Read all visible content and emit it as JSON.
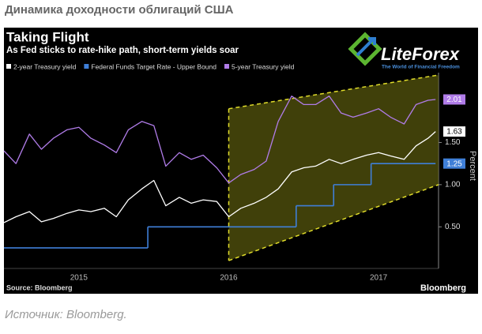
{
  "header": {
    "title": "Динамика доходности облигаций США"
  },
  "chart_data": {
    "type": "line",
    "title": "Taking Flight",
    "subtitle": "As Fed sticks to rate-hike path, short-term yields soar",
    "y_label": "Percent",
    "source": "Source: Bloomberg",
    "brand": "Bloomberg",
    "watermark": {
      "name": "LiteForex",
      "tagline": "The World of Financial Freedom"
    },
    "xlim": [
      2015,
      2017.9
    ],
    "xticks": [
      {
        "value": 2015.5,
        "label": "2015"
      },
      {
        "value": 2016.5,
        "label": "2016"
      },
      {
        "value": 2017.5,
        "label": "2017"
      }
    ],
    "ylim": [
      0.1,
      2.3
    ],
    "yticks": [
      {
        "value": 0.5,
        "label": "0.50"
      },
      {
        "value": 1,
        "label": "1.00"
      },
      {
        "value": 1.5,
        "label": "1.50"
      }
    ],
    "axis_side": "right",
    "grid": false,
    "series": [
      {
        "name": "2-year Treasury yield",
        "color": "#ffffff",
        "x": [
          2015.0,
          2015.08,
          2015.17,
          2015.25,
          2015.33,
          2015.42,
          2015.5,
          2015.58,
          2015.67,
          2015.75,
          2015.83,
          2015.92,
          2016.0,
          2016.08,
          2016.17,
          2016.25,
          2016.33,
          2016.42,
          2016.5,
          2016.58,
          2016.67,
          2016.75,
          2016.83,
          2016.92,
          2017.0,
          2017.08,
          2017.17,
          2017.25,
          2017.33,
          2017.42,
          2017.5,
          2017.58,
          2017.67,
          2017.75,
          2017.83,
          2017.88
        ],
        "values": [
          0.55,
          0.62,
          0.68,
          0.56,
          0.6,
          0.66,
          0.7,
          0.68,
          0.72,
          0.62,
          0.82,
          0.95,
          1.05,
          0.75,
          0.85,
          0.78,
          0.82,
          0.8,
          0.62,
          0.72,
          0.78,
          0.85,
          0.95,
          1.15,
          1.2,
          1.22,
          1.3,
          1.25,
          1.3,
          1.35,
          1.38,
          1.34,
          1.3,
          1.46,
          1.55,
          1.63
        ]
      },
      {
        "name": "Federal Funds Target Rate - Upper Bound",
        "color": "#3f7fd8",
        "step": true,
        "x": [
          2015.0,
          2015.96,
          2016.95,
          2017.2,
          2017.45,
          2017.88
        ],
        "values": [
          0.25,
          0.5,
          0.75,
          1,
          1.25,
          1.25
        ]
      },
      {
        "name": "5-year Treasury yield",
        "color": "#b07ce8",
        "x": [
          2015.0,
          2015.08,
          2015.17,
          2015.25,
          2015.33,
          2015.42,
          2015.5,
          2015.58,
          2015.67,
          2015.75,
          2015.83,
          2015.92,
          2016.0,
          2016.08,
          2016.17,
          2016.25,
          2016.33,
          2016.42,
          2016.5,
          2016.58,
          2016.67,
          2016.75,
          2016.83,
          2016.92,
          2017.0,
          2017.08,
          2017.17,
          2017.25,
          2017.33,
          2017.42,
          2017.5,
          2017.58,
          2017.67,
          2017.75,
          2017.83,
          2017.88
        ],
        "values": [
          1.4,
          1.25,
          1.6,
          1.42,
          1.55,
          1.65,
          1.68,
          1.55,
          1.47,
          1.38,
          1.65,
          1.75,
          1.7,
          1.22,
          1.38,
          1.3,
          1.35,
          1.2,
          1.02,
          1.12,
          1.18,
          1.28,
          1.75,
          2.05,
          1.95,
          1.95,
          2.05,
          1.85,
          1.8,
          1.85,
          1.9,
          1.8,
          1.72,
          1.95,
          2.0,
          2.01
        ]
      }
    ],
    "channel": {
      "color": "#e0dc2a",
      "fill": "#55550e",
      "x": [
        2016.5,
        2017.9
      ],
      "upper": [
        1.9,
        2.3
      ],
      "lower": [
        0.1,
        1.0
      ]
    }
  },
  "caption": "Источник: Bloomberg."
}
